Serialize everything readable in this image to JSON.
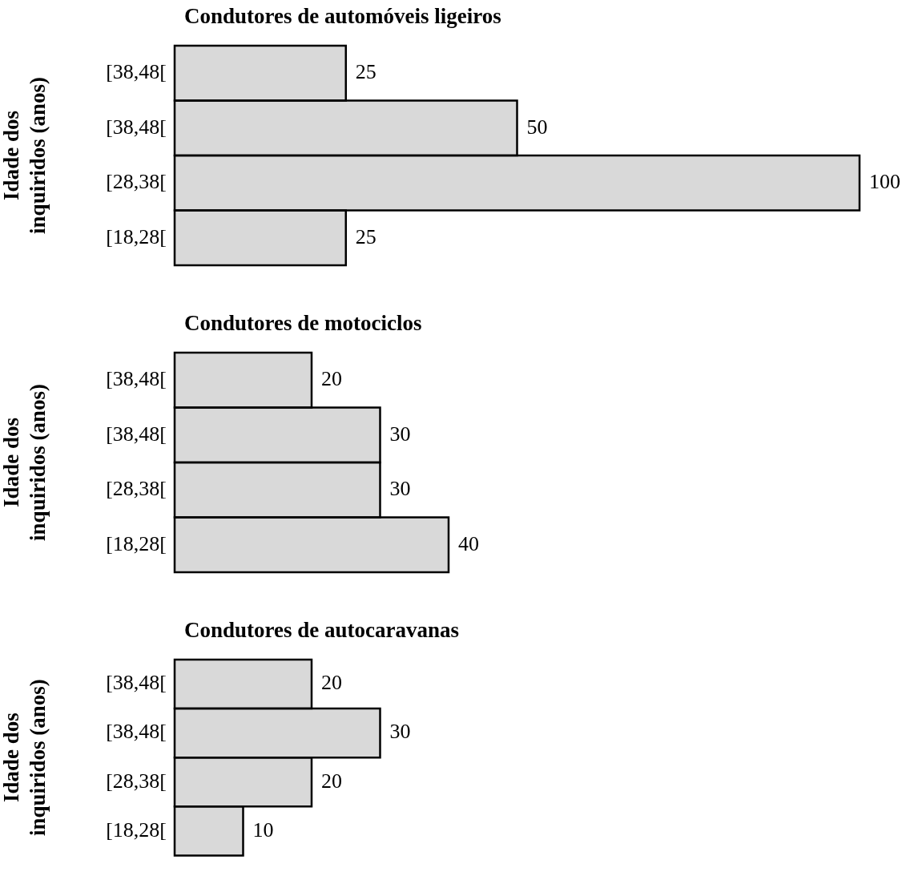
{
  "chart_data": [
    {
      "type": "bar",
      "orientation": "horizontal",
      "title": "Condutores de automóveis ligeiros",
      "ylabel": "Idade dos inquiridos (anos)",
      "categories": [
        "[38,48[",
        "[38,48[",
        "[28,38[",
        "[18,28["
      ],
      "values": [
        25,
        50,
        100,
        25
      ],
      "color": "#d9d9d9",
      "data_labels": true,
      "tick_labels": "y"
    },
    {
      "type": "bar",
      "orientation": "horizontal",
      "title": "Condutores de motociclos",
      "ylabel": "Idade dos inquiridos (anos)",
      "categories": [
        "[38,48[",
        "[38,48[",
        "[28,38[",
        "[18,28["
      ],
      "values": [
        20,
        30,
        30,
        40
      ],
      "color": "#d9d9d9",
      "data_labels": true,
      "tick_labels": "y"
    },
    {
      "type": "bar",
      "orientation": "horizontal",
      "title": "Condutores de autocaravanas",
      "ylabel": "Idade dos inquiridos (anos)",
      "categories": [
        "[38,48[",
        "[38,48[",
        "[28,38[",
        "[18,28["
      ],
      "values": [
        20,
        30,
        20,
        10
      ],
      "color": "#d9d9d9",
      "data_labels": true,
      "tick_labels": "y"
    }
  ]
}
